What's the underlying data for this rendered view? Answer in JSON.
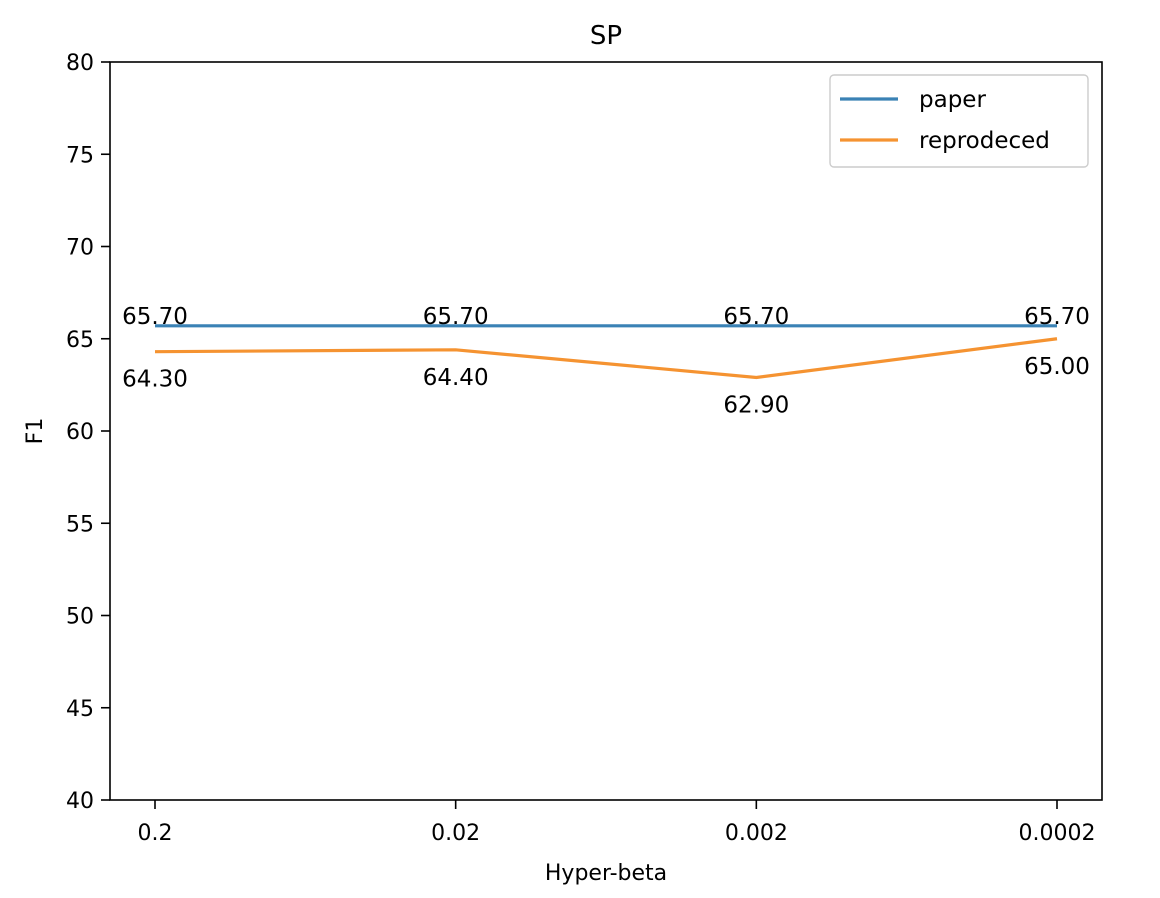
{
  "chart_data": {
    "type": "line",
    "title": "SP",
    "xlabel": "Hyper-beta",
    "ylabel": "F1",
    "categories": [
      "0.2",
      "0.02",
      "0.002",
      "0.0002"
    ],
    "ylim": [
      40,
      80
    ],
    "yticks": [
      40,
      45,
      50,
      55,
      60,
      65,
      70,
      75,
      80
    ],
    "grid": false,
    "legend_position": "top-right",
    "series": [
      {
        "name": "paper",
        "color": "#3a82b5",
        "values": [
          65.7,
          65.7,
          65.7,
          65.7
        ],
        "labels": [
          "65.70",
          "65.70",
          "65.70",
          "65.70"
        ]
      },
      {
        "name": "reprodeced",
        "color": "#f59331",
        "values": [
          64.3,
          64.4,
          62.9,
          65.0
        ],
        "labels": [
          "64.30",
          "64.40",
          "62.90",
          "65.00"
        ]
      }
    ]
  }
}
